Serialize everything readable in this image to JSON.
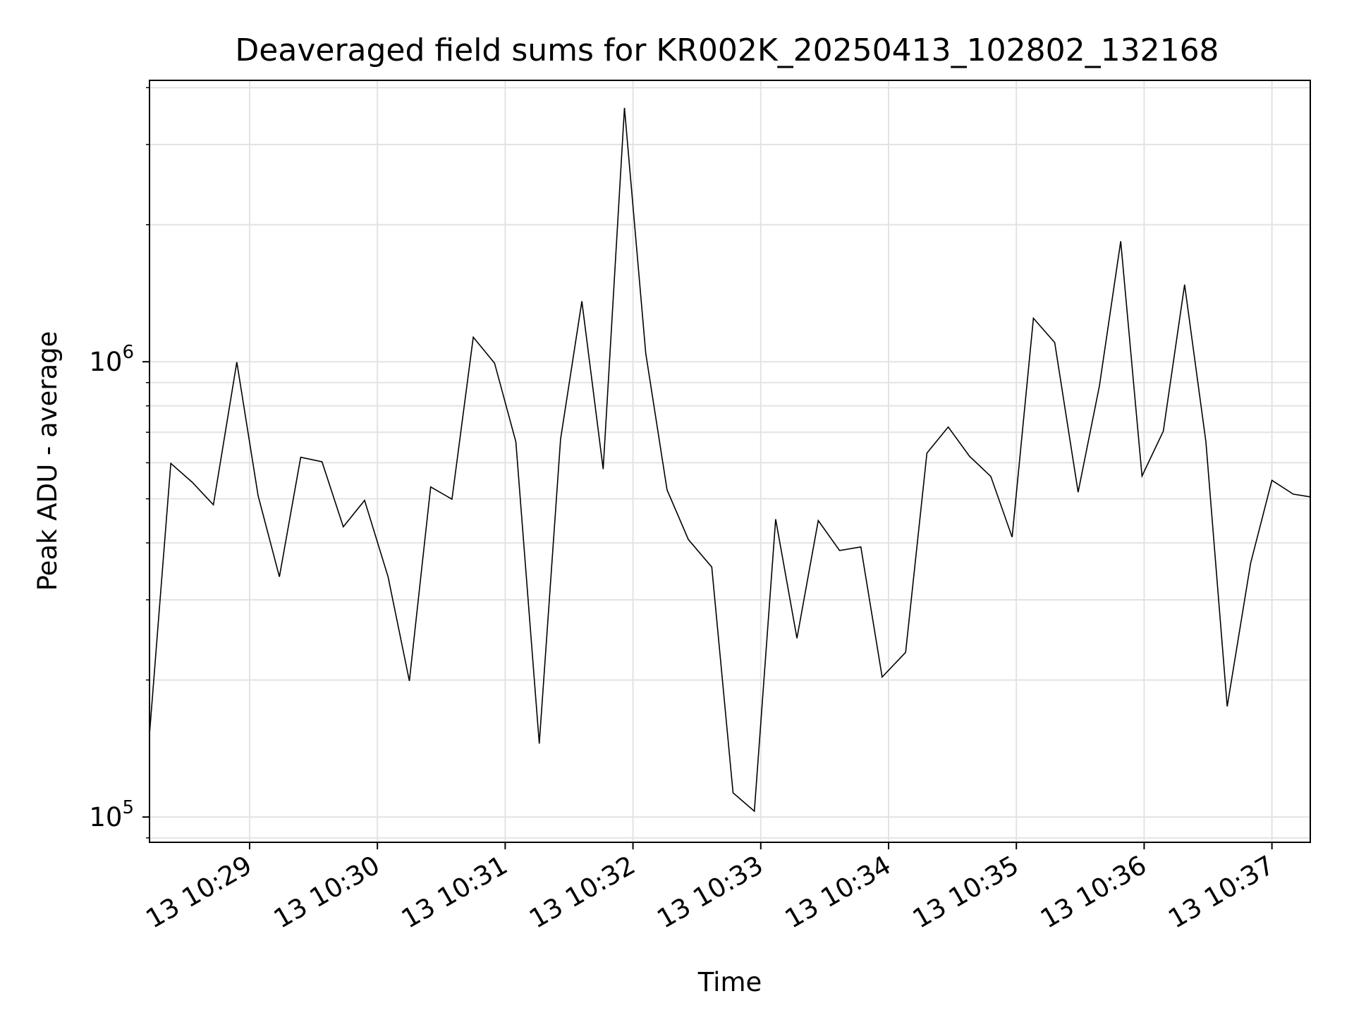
{
  "chart_data": {
    "type": "line",
    "title": "Deaveraged field sums for KR002K_20250413_102802_132168",
    "xlabel": "Time",
    "ylabel": "Peak ADU - average",
    "yscale": "log",
    "ylim": [
      88000,
      4150000
    ],
    "xlim": [
      "13 10:28:13",
      "13 10:37:18"
    ],
    "grid": true,
    "line_color": "#000000",
    "x_ticks": [
      "13 10:29",
      "13 10:30",
      "13 10:31",
      "13 10:32",
      "13 10:33",
      "13 10:34",
      "13 10:35",
      "13 10:36",
      "13 10:37"
    ],
    "y_ticks": [
      {
        "base": "10",
        "exp": "5",
        "value": 100000
      },
      {
        "base": "10",
        "exp": "6",
        "value": 1000000
      }
    ],
    "x": [
      "13 10:28:13",
      "13 10:28:23",
      "13 10:28:33",
      "13 10:28:43",
      "13 10:28:54",
      "13 10:29:04",
      "13 10:29:14",
      "13 10:29:24",
      "13 10:29:34",
      "13 10:29:44",
      "13 10:29:54",
      "13 10:30:05",
      "13 10:30:15",
      "13 10:30:25",
      "13 10:30:35",
      "13 10:30:45",
      "13 10:30:55",
      "13 10:31:05",
      "13 10:31:16",
      "13 10:31:26",
      "13 10:31:36",
      "13 10:31:46",
      "13 10:31:56",
      "13 10:32:06",
      "13 10:32:16",
      "13 10:32:26",
      "13 10:32:37",
      "13 10:32:47",
      "13 10:32:57",
      "13 10:33:07",
      "13 10:33:17",
      "13 10:33:27",
      "13 10:33:37",
      "13 10:33:47",
      "13 10:33:57",
      "13 10:34:08",
      "13 10:34:18",
      "13 10:34:28",
      "13 10:34:38",
      "13 10:34:48",
      "13 10:34:58",
      "13 10:35:08",
      "13 10:35:18",
      "13 10:35:29",
      "13 10:35:39",
      "13 10:35:49",
      "13 10:35:59",
      "13 10:36:09",
      "13 10:36:19",
      "13 10:36:29",
      "13 10:36:39",
      "13 10:36:50",
      "13 10:37:00",
      "13 10:37:10",
      "13 10:37:18"
    ],
    "values": [
      152000,
      598000,
      544000,
      485000,
      998000,
      508000,
      337000,
      617000,
      603000,
      434000,
      496000,
      337000,
      199000,
      531000,
      499000,
      1132000,
      993000,
      667000,
      145000,
      676000,
      1358000,
      581000,
      3610000,
      1043000,
      523000,
      407000,
      354000,
      113000,
      103000,
      451000,
      247000,
      448000,
      385000,
      392000,
      203000,
      230000,
      630000,
      719000,
      620000,
      560000,
      412000,
      1246000,
      1102000,
      517000,
      885000,
      1840000,
      561000,
      704000,
      1477000,
      667000,
      175000,
      361000,
      549000,
      512000,
      505000
    ]
  }
}
